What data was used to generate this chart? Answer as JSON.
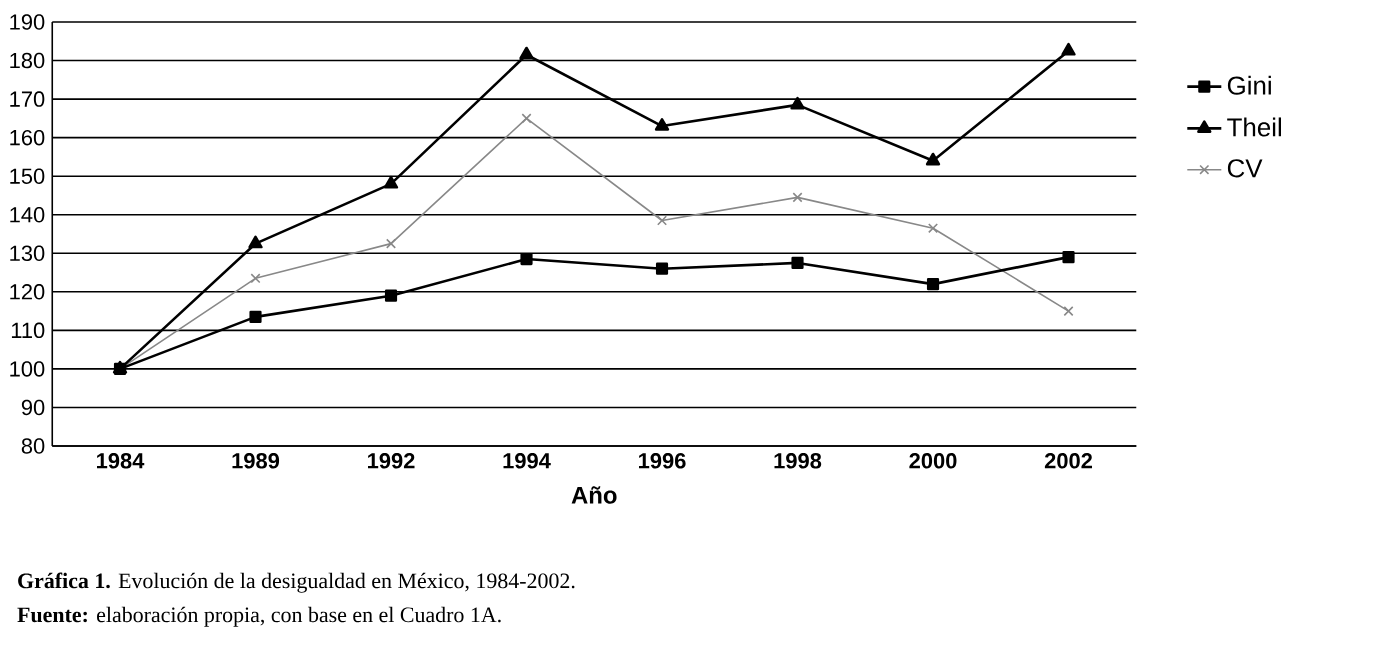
{
  "chart_data": {
    "type": "line",
    "title": "**Gráfica 1.** Evolución de la desigualdad en México, 1984-2002.",
    "annotations": [
      "**Fuente:** elaboración propia, con base en el Cuadro 1A."
    ],
    "xlabel": "Año",
    "categories": [
      "1984",
      "1989",
      "1992",
      "1994",
      "1996",
      "1998",
      "2000",
      "2002"
    ],
    "series": [
      {
        "name": "Gini",
        "color": "#000000",
        "marker": "square",
        "values": [
          100,
          113.5,
          119,
          128.5,
          126,
          127.5,
          122,
          129
        ]
      },
      {
        "name": "Theil",
        "color": "#000000",
        "marker": "triangle",
        "values": [
          100,
          132.5,
          148,
          181.5,
          163,
          168.5,
          154,
          182.5
        ]
      },
      {
        "name": "CV",
        "color": "#888888",
        "marker": "cross",
        "values": [
          100,
          123.5,
          132.5,
          165,
          138.5,
          144.5,
          136.5,
          115
        ]
      }
    ],
    "ylim": [
      80,
      190
    ],
    "yticks": [
      80,
      90,
      100,
      110,
      120,
      130,
      140,
      150,
      160,
      170,
      180,
      190
    ],
    "grid": "y",
    "legend": "right",
    "line_style": "solid"
  }
}
